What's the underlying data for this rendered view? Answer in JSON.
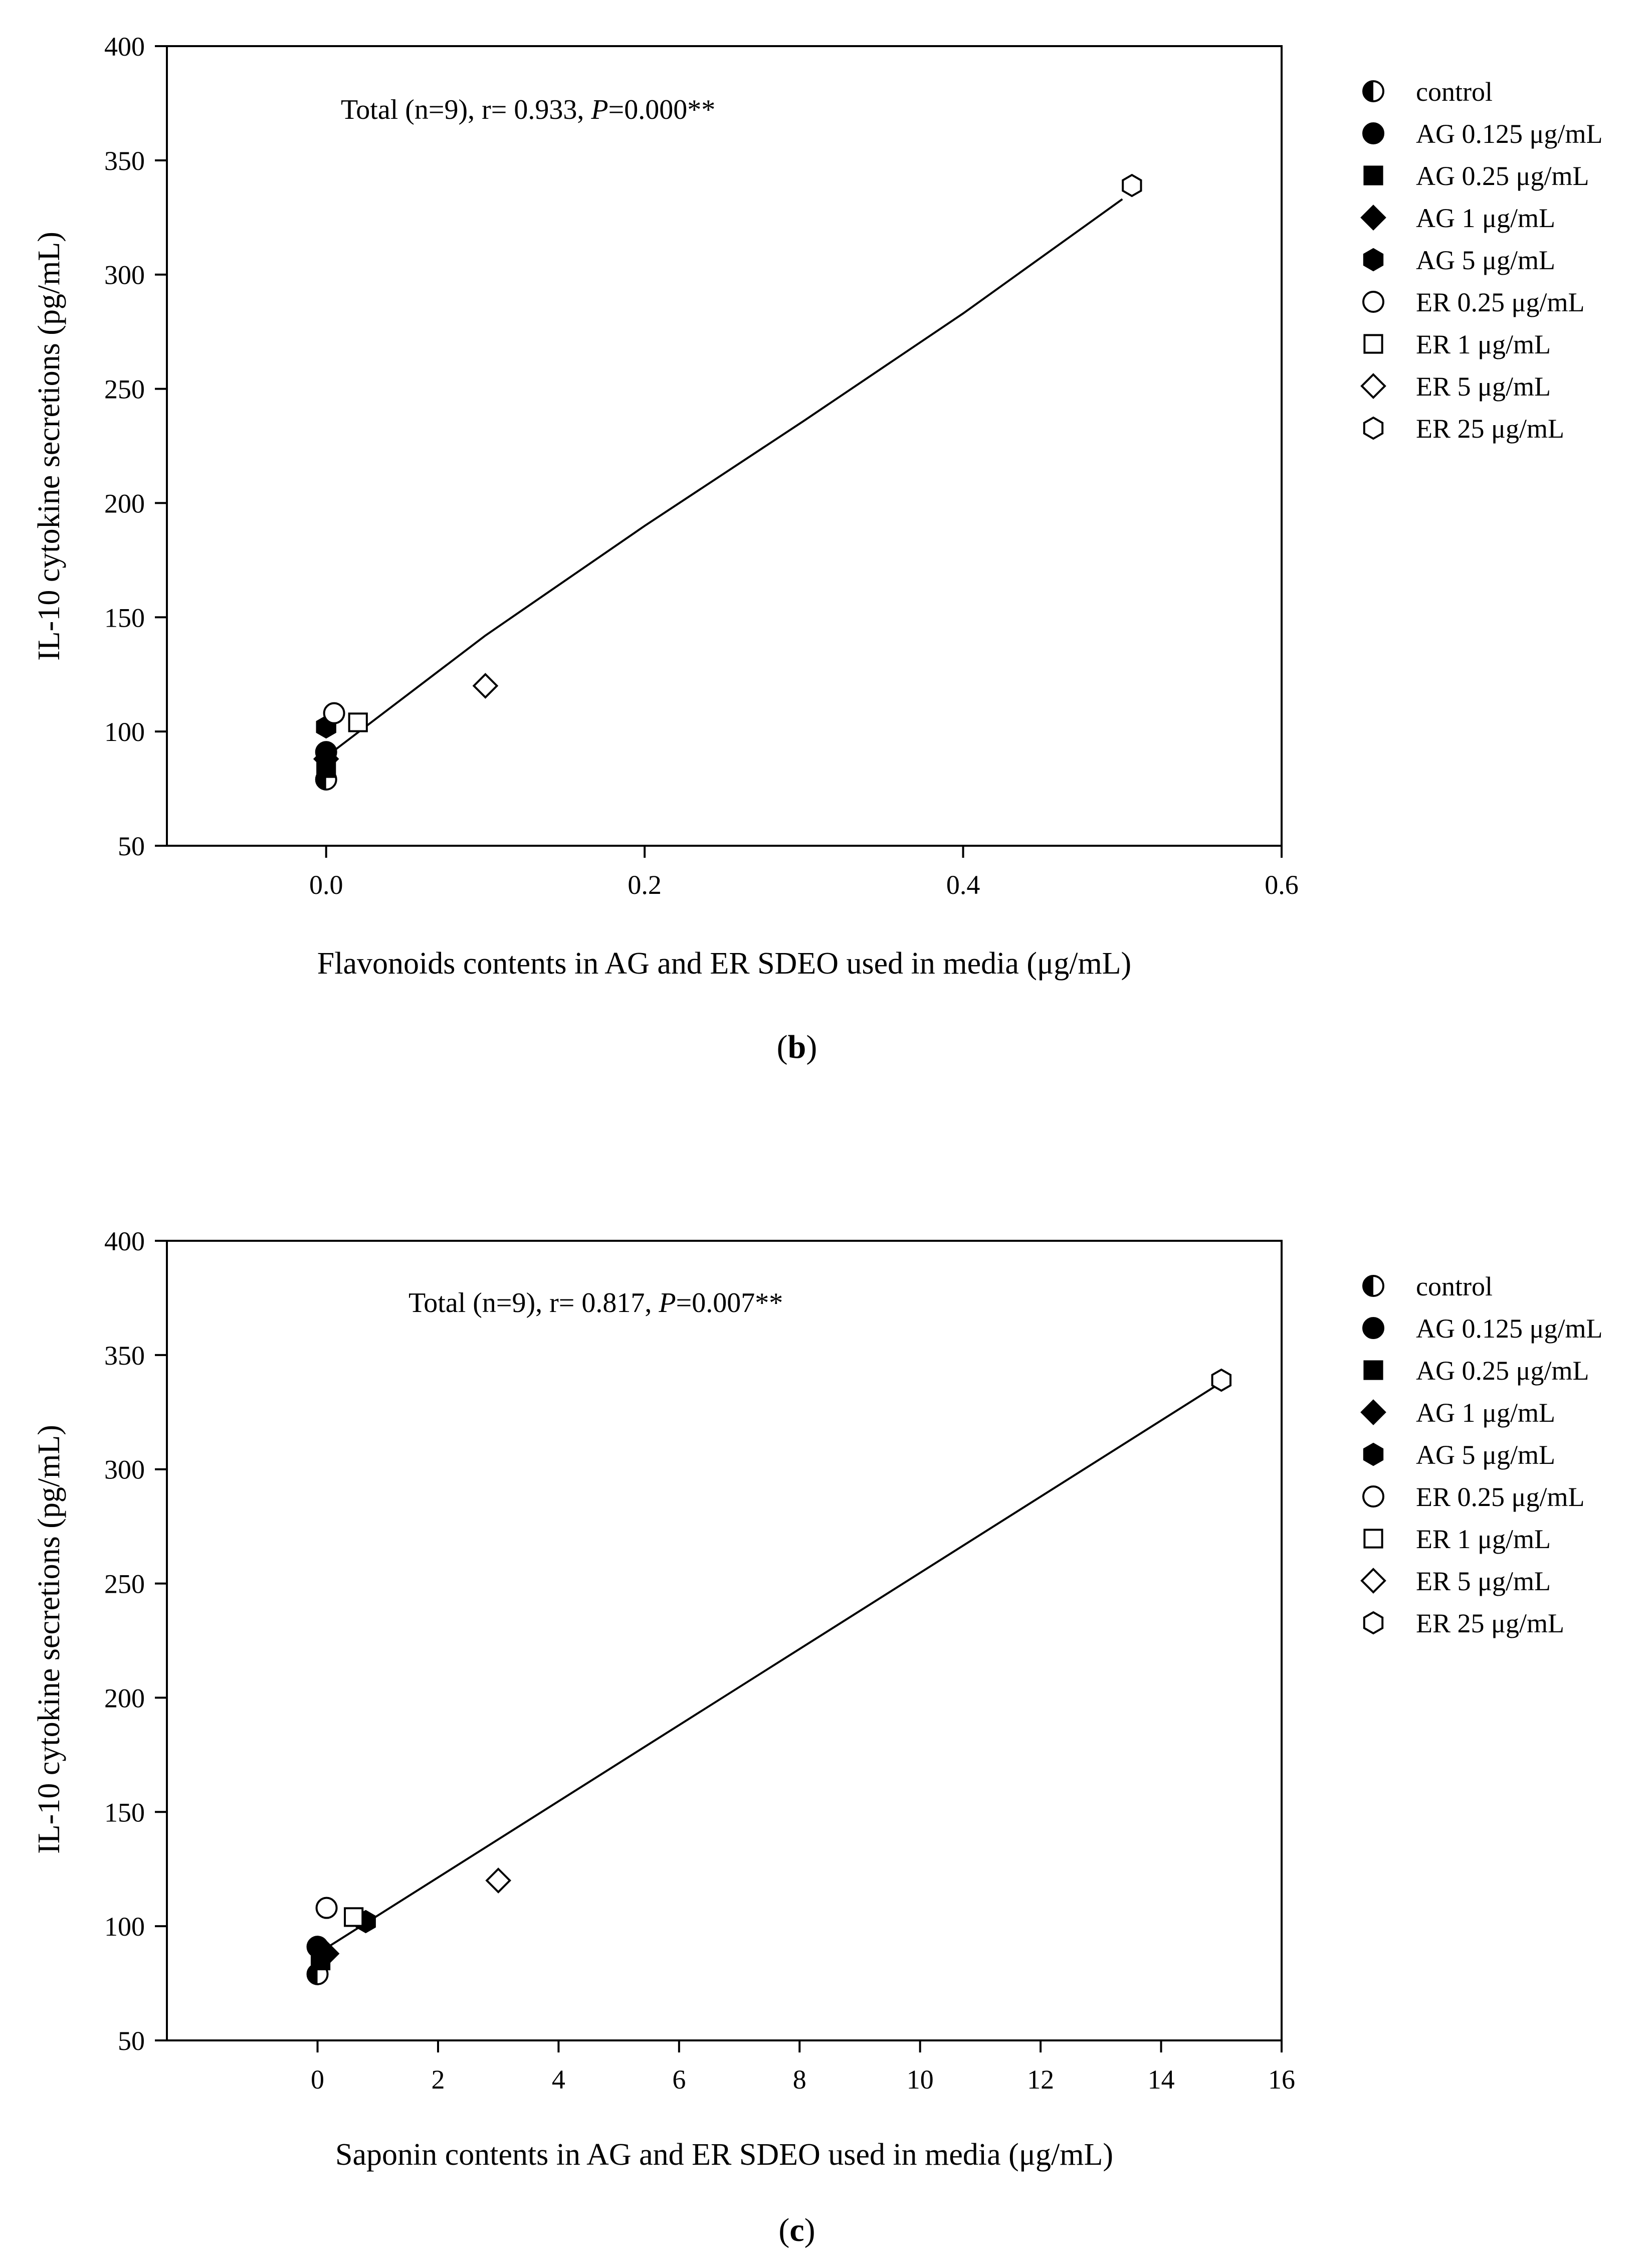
{
  "chart_data": [
    {
      "type": "scatter",
      "panel_label": "b",
      "annotation": {
        "prefix": "Total (n=9), r= 0.933, ",
        "p_symbol": "P",
        "suffix": "=0.000**"
      },
      "xlabel": "Flavonoids contents in AG and ER SDEO used in media (μg/mL)",
      "ylabel": "IL-10 cytokine secretions (pg/mL)",
      "xlim": [
        -0.1,
        0.6
      ],
      "ylim": [
        50,
        400
      ],
      "xticks": [
        0.0,
        0.2,
        0.4,
        0.6
      ],
      "xtick_labels": [
        "0.0",
        "0.2",
        "0.4",
        "0.6"
      ],
      "yticks": [
        50,
        100,
        150,
        200,
        250,
        300,
        350,
        400
      ],
      "ytick_labels": [
        "50",
        "100",
        "150",
        "200",
        "250",
        "300",
        "350",
        "400"
      ],
      "grid": false,
      "legend_position": "right",
      "series": [
        {
          "name": "control",
          "marker": "half-circle",
          "points": [
            [
              0.0,
              79
            ]
          ]
        },
        {
          "name": "AG 0.125 μg/mL",
          "marker": "filled-circle",
          "points": [
            [
              0.0,
              91
            ]
          ]
        },
        {
          "name": "AG 0.25 μg/mL",
          "marker": "filled-square",
          "points": [
            [
              0.0,
              84
            ]
          ]
        },
        {
          "name": "AG 1 μg/mL",
          "marker": "filled-diamond",
          "points": [
            [
              0.0,
              88
            ]
          ]
        },
        {
          "name": "AG 5 μg/mL",
          "marker": "filled-hexagon",
          "points": [
            [
              0.0,
              102
            ]
          ]
        },
        {
          "name": "ER 0.25 μg/mL",
          "marker": "open-circle",
          "points": [
            [
              0.005,
              108
            ]
          ]
        },
        {
          "name": "ER 1 μg/mL",
          "marker": "open-square",
          "points": [
            [
              0.02,
              104
            ]
          ]
        },
        {
          "name": "ER 5 μg/mL",
          "marker": "open-diamond",
          "points": [
            [
              0.1,
              120
            ]
          ]
        },
        {
          "name": "ER 25 μg/mL",
          "marker": "open-hexagon",
          "points": [
            [
              0.506,
              339
            ]
          ]
        }
      ],
      "fit_line": {
        "type": "curve",
        "points": [
          [
            0.0,
            89
          ],
          [
            0.1,
            142
          ],
          [
            0.2,
            190
          ],
          [
            0.3,
            236
          ],
          [
            0.4,
            283
          ],
          [
            0.5,
            333
          ]
        ]
      }
    },
    {
      "type": "scatter",
      "panel_label": "c",
      "annotation": {
        "prefix": "Total (n=9), r= 0.817, ",
        "p_symbol": "P",
        "suffix": "=0.007**"
      },
      "xlabel": "Saponin contents in AG and ER SDEO used in media (μg/mL)",
      "ylabel": "IL-10 cytokine secretions (pg/mL)",
      "xlim": [
        -2.5,
        16
      ],
      "ylim": [
        50,
        400
      ],
      "xticks": [
        0,
        2,
        4,
        6,
        8,
        10,
        12,
        14,
        16
      ],
      "xtick_labels": [
        "0",
        "2",
        "4",
        "6",
        "8",
        "10",
        "12",
        "14",
        "16"
      ],
      "yticks": [
        50,
        100,
        150,
        200,
        250,
        300,
        350,
        400
      ],
      "ytick_labels": [
        "50",
        "100",
        "150",
        "200",
        "250",
        "300",
        "350",
        "400"
      ],
      "grid": false,
      "legend_position": "right",
      "series": [
        {
          "name": "control",
          "marker": "half-circle",
          "points": [
            [
              0.0,
              79
            ]
          ]
        },
        {
          "name": "AG 0.125 μg/mL",
          "marker": "filled-circle",
          "points": [
            [
              0.0,
              91
            ]
          ]
        },
        {
          "name": "AG 0.25 μg/mL",
          "marker": "filled-square",
          "points": [
            [
              0.05,
              85
            ]
          ]
        },
        {
          "name": "AG 1 μg/mL",
          "marker": "filled-diamond",
          "points": [
            [
              0.15,
              88
            ]
          ]
        },
        {
          "name": "AG 5 μg/mL",
          "marker": "filled-hexagon",
          "points": [
            [
              0.8,
              102
            ]
          ]
        },
        {
          "name": "ER 0.25 μg/mL",
          "marker": "open-circle",
          "points": [
            [
              0.15,
              108
            ]
          ]
        },
        {
          "name": "ER 1 μg/mL",
          "marker": "open-square",
          "points": [
            [
              0.6,
              104
            ]
          ]
        },
        {
          "name": "ER 5 μg/mL",
          "marker": "open-diamond",
          "points": [
            [
              3.0,
              120
            ]
          ]
        },
        {
          "name": "ER 25 μg/mL",
          "marker": "open-hexagon",
          "points": [
            [
              15.0,
              339
            ]
          ]
        }
      ],
      "fit_line": {
        "type": "linear",
        "points": [
          [
            0.0,
            88
          ],
          [
            15.0,
            338
          ]
        ]
      }
    }
  ]
}
